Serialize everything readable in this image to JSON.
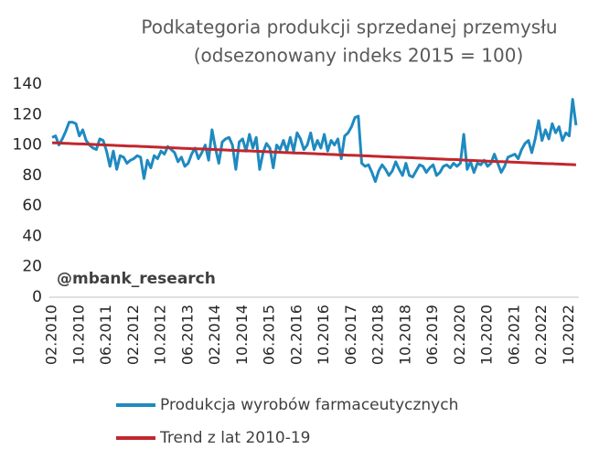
{
  "chart_data": {
    "type": "line",
    "title": "Podkategoria produkcji sprzedanej przemysłu",
    "subtitle": "(odsezonowany indeks 2015 = 100)",
    "annotation": "@mbank_research",
    "categories": [
      "02.2010",
      null,
      null,
      null,
      null,
      null,
      null,
      null,
      "10.2010",
      null,
      null,
      null,
      null,
      null,
      null,
      null,
      "06.2011",
      null,
      null,
      null,
      null,
      null,
      null,
      null,
      "02.2012",
      null,
      null,
      null,
      null,
      null,
      null,
      null,
      "10.2012",
      null,
      null,
      null,
      null,
      null,
      null,
      null,
      "06.2013",
      null,
      null,
      null,
      null,
      null,
      null,
      null,
      "02.2014",
      null,
      null,
      null,
      null,
      null,
      null,
      null,
      "10.2014",
      null,
      null,
      null,
      null,
      null,
      null,
      null,
      "06.2015",
      null,
      null,
      null,
      null,
      null,
      null,
      null,
      "02.2016",
      null,
      null,
      null,
      null,
      null,
      null,
      null,
      "10.2016",
      null,
      null,
      null,
      null,
      null,
      null,
      null,
      "06.2017",
      null,
      null,
      null,
      null,
      null,
      null,
      null,
      "02.2018",
      null,
      null,
      null,
      null,
      null,
      null,
      null,
      "10.2018",
      null,
      null,
      null,
      null,
      null,
      null,
      null,
      "06.2019",
      null,
      null,
      null,
      null,
      null,
      null,
      null,
      "02.2020",
      null,
      null,
      null,
      null,
      null,
      null,
      null,
      "10.2020",
      null,
      null,
      null,
      null,
      null,
      null,
      null,
      "06.2021",
      null,
      null,
      null,
      null,
      null,
      null,
      null,
      "02.2022",
      null,
      null,
      null,
      null,
      null,
      null,
      null,
      "10.2022",
      null,
      null
    ],
    "series": [
      {
        "name": "Produkcja wyrobów farmaceutycznych",
        "color": "#1f8ac0",
        "values": [
          105,
          106,
          100,
          104,
          109,
          115,
          115,
          114,
          106,
          110,
          103,
          100,
          98,
          97,
          104,
          103,
          96,
          86,
          96,
          84,
          93,
          92,
          88,
          90,
          91,
          93,
          92,
          78,
          90,
          85,
          93,
          91,
          96,
          94,
          99,
          97,
          95,
          89,
          92,
          86,
          88,
          94,
          98,
          91,
          95,
          100,
          90,
          110,
          98,
          88,
          102,
          104,
          105,
          100,
          84,
          102,
          104,
          96,
          107,
          98,
          105,
          84,
          95,
          101,
          98,
          85,
          100,
          97,
          103,
          96,
          105,
          96,
          108,
          104,
          97,
          100,
          108,
          97,
          103,
          98,
          107,
          96,
          103,
          100,
          104,
          91,
          106,
          108,
          112,
          118,
          119,
          88,
          86,
          87,
          82,
          76,
          83,
          87,
          84,
          80,
          83,
          89,
          84,
          80,
          88,
          80,
          79,
          83,
          87,
          86,
          82,
          85,
          87,
          80,
          82,
          86,
          87,
          85,
          88,
          86,
          88,
          107,
          84,
          89,
          82,
          88,
          87,
          90,
          86,
          88,
          94,
          88,
          82,
          86,
          92,
          93,
          94,
          91,
          97,
          101,
          103,
          95,
          104,
          116,
          103,
          110,
          104,
          114,
          108,
          112,
          103,
          108,
          106,
          130,
          113
        ]
      },
      {
        "name": "Trend z lat 2010-19",
        "color": "#c0272d",
        "values": [
          101.5,
          101.4,
          101.3,
          101.2,
          101.1,
          101.0,
          100.9,
          100.8,
          100.7,
          100.7,
          100.6,
          100.5,
          100.4,
          100.3,
          100.2,
          100.1,
          100.0,
          99.9,
          99.8,
          99.7,
          99.6,
          99.5,
          99.4,
          99.3,
          99.3,
          99.2,
          99.1,
          99.0,
          98.9,
          98.8,
          98.7,
          98.6,
          98.5,
          98.4,
          98.3,
          98.2,
          98.1,
          98.0,
          97.9,
          97.8,
          97.7,
          97.6,
          97.5,
          97.5,
          97.4,
          97.3,
          97.2,
          97.1,
          97.0,
          96.9,
          96.8,
          96.7,
          96.6,
          96.5,
          96.4,
          96.3,
          96.2,
          96.1,
          96.1,
          96.0,
          95.9,
          95.8,
          95.7,
          95.6,
          95.5,
          95.4,
          95.3,
          95.2,
          95.1,
          95.0,
          94.9,
          94.8,
          94.7,
          94.7,
          94.6,
          94.5,
          94.4,
          94.3,
          94.2,
          94.1,
          94.0,
          93.9,
          93.8,
          93.7,
          93.6,
          93.5,
          93.4,
          93.3,
          93.3,
          93.2,
          93.1,
          93.0,
          92.9,
          92.8,
          92.7,
          92.6,
          92.5,
          92.4,
          92.3,
          92.2,
          92.1,
          92.0,
          91.9,
          91.9,
          91.8,
          91.7,
          91.6,
          91.5,
          91.4,
          91.3,
          91.2,
          91.1,
          91.0,
          90.9,
          90.8,
          90.7,
          90.6,
          90.5,
          90.5,
          90.4,
          90.2,
          90.1,
          90.0,
          89.9,
          89.8,
          89.7,
          89.6,
          89.5,
          89.4,
          89.3,
          89.2,
          89.1,
          89.1,
          89.0,
          88.9,
          88.8,
          88.7,
          88.6,
          88.5,
          88.4,
          88.3,
          88.2,
          88.1,
          88.0,
          87.9,
          87.8,
          87.7,
          87.7,
          87.6,
          87.5,
          87.4,
          87.3,
          87.2,
          87.1,
          87.0
        ]
      }
    ],
    "ylim": [
      0,
      140
    ],
    "yticks": [
      0,
      20,
      40,
      60,
      80,
      100,
      120,
      140
    ],
    "grid": false
  }
}
